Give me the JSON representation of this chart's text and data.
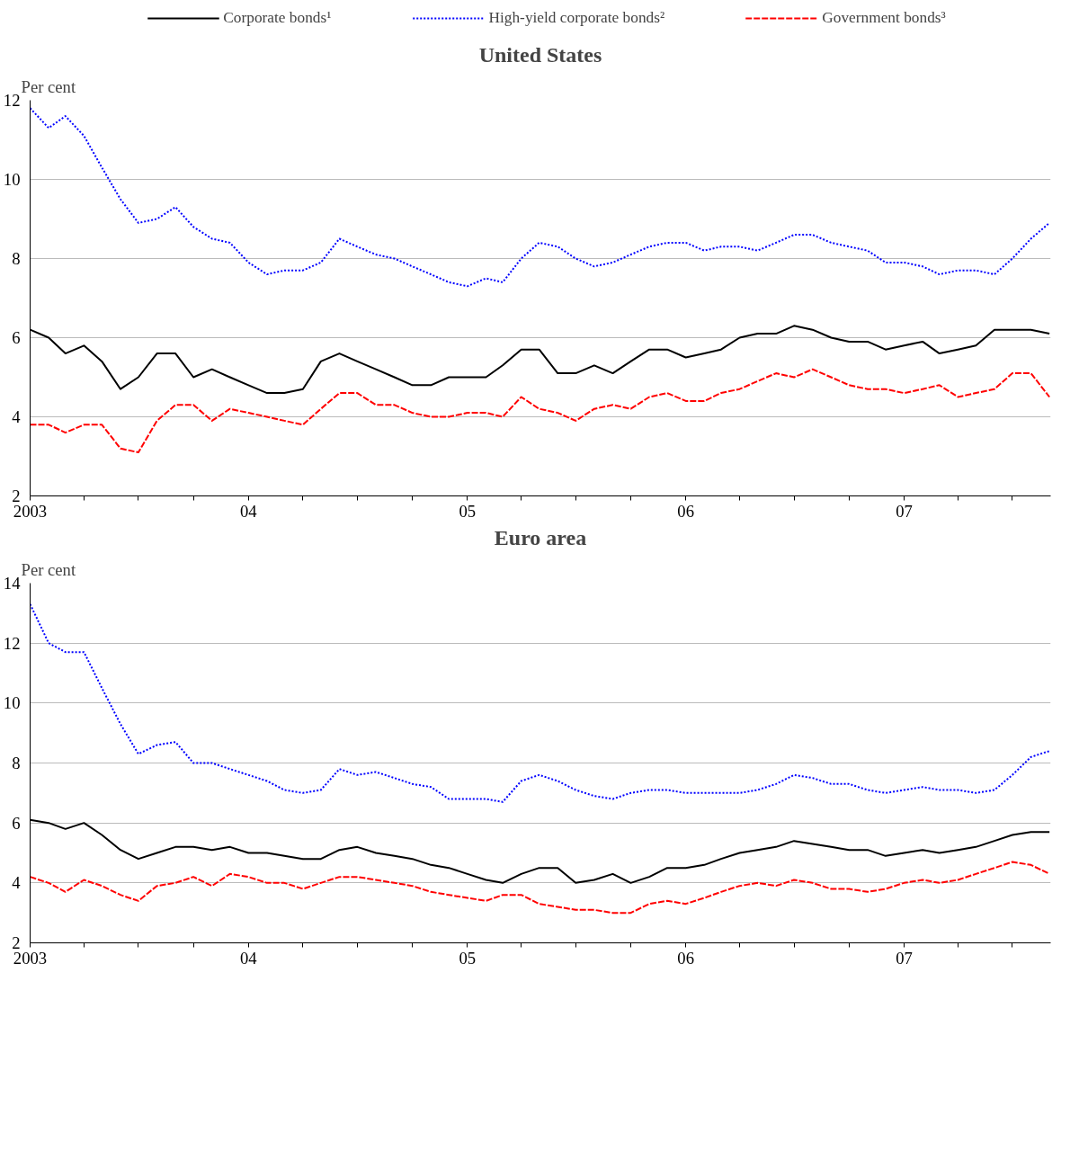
{
  "chart_data": [
    {
      "type": "line",
      "title": "United States",
      "ylabel": "Per cent",
      "legend": "top",
      "grid": "y",
      "x": [
        "2003-01",
        "2003-02",
        "2003-03",
        "2003-04",
        "2003-05",
        "2003-06",
        "2003-07",
        "2003-08",
        "2003-09",
        "2003-10",
        "2003-11",
        "2003-12",
        "2004-01",
        "2004-02",
        "2004-03",
        "2004-04",
        "2004-05",
        "2004-06",
        "2004-07",
        "2004-08",
        "2004-09",
        "2004-10",
        "2004-11",
        "2004-12",
        "2005-01",
        "2005-02",
        "2005-03",
        "2005-04",
        "2005-05",
        "2005-06",
        "2005-07",
        "2005-08",
        "2005-09",
        "2005-10",
        "2005-11",
        "2005-12",
        "2006-01",
        "2006-02",
        "2006-03",
        "2006-04",
        "2006-05",
        "2006-06",
        "2006-07",
        "2006-08",
        "2006-09",
        "2006-10",
        "2006-11",
        "2006-12",
        "2007-01",
        "2007-02",
        "2007-03",
        "2007-04",
        "2007-05",
        "2007-06",
        "2007-07",
        "2007-08",
        "2007-09"
      ],
      "xlim": [
        "2003-01-01",
        "2007-09-03"
      ],
      "xticks": [
        {
          "value": "2003-01",
          "label": "2003"
        },
        {
          "value": "2003-04",
          "label": null
        },
        {
          "value": "2003-07",
          "label": null
        },
        {
          "value": "2003-10",
          "label": null
        },
        {
          "value": "2004-01",
          "label": "04"
        },
        {
          "value": "2004-04",
          "label": null
        },
        {
          "value": "2004-07",
          "label": null
        },
        {
          "value": "2004-10",
          "label": null
        },
        {
          "value": "2005-01",
          "label": "05"
        },
        {
          "value": "2005-04",
          "label": null
        },
        {
          "value": "2005-07",
          "label": null
        },
        {
          "value": "2005-10",
          "label": null
        },
        {
          "value": "2006-01",
          "label": "06"
        },
        {
          "value": "2006-04",
          "label": null
        },
        {
          "value": "2006-07",
          "label": null
        },
        {
          "value": "2006-10",
          "label": null
        },
        {
          "value": "2007-01",
          "label": "07"
        },
        {
          "value": "2007-04",
          "label": null
        },
        {
          "value": "2007-07",
          "label": null
        }
      ],
      "ylim": [
        2,
        12
      ],
      "yticks": [
        2,
        4,
        6,
        8,
        10,
        12
      ],
      "series": [
        {
          "name": "Corporate bonds¹",
          "color": "#000000",
          "line_style": "solid",
          "values": [
            6.2,
            6.0,
            5.6,
            5.8,
            5.4,
            4.7,
            5.0,
            5.6,
            5.6,
            5.0,
            5.2,
            5.0,
            4.8,
            4.6,
            4.6,
            4.7,
            5.4,
            5.6,
            5.4,
            5.2,
            5.0,
            4.8,
            4.8,
            5.0,
            5.0,
            5.0,
            5.3,
            5.7,
            5.7,
            5.1,
            5.1,
            5.3,
            5.1,
            5.4,
            5.7,
            5.7,
            5.5,
            5.6,
            5.7,
            6.0,
            6.1,
            6.1,
            6.3,
            6.2,
            6.0,
            5.9,
            5.9,
            5.7,
            5.8,
            5.9,
            5.6,
            5.7,
            5.8,
            6.2,
            6.2,
            6.2,
            6.1
          ]
        },
        {
          "name": "High-yield corporate bonds²",
          "color": "#0000ff",
          "line_style": "dotted",
          "values": [
            11.8,
            11.3,
            11.6,
            11.1,
            10.3,
            9.5,
            8.9,
            9.0,
            9.3,
            8.8,
            8.5,
            8.4,
            7.9,
            7.6,
            7.7,
            7.7,
            7.9,
            8.5,
            8.3,
            8.1,
            8.0,
            7.8,
            7.6,
            7.4,
            7.3,
            7.5,
            7.4,
            8.0,
            8.4,
            8.3,
            8.0,
            7.8,
            7.9,
            8.1,
            8.3,
            8.4,
            8.4,
            8.2,
            8.3,
            8.3,
            8.2,
            8.4,
            8.6,
            8.6,
            8.4,
            8.3,
            8.2,
            7.9,
            7.9,
            7.8,
            7.6,
            7.7,
            7.7,
            7.6,
            8.0,
            8.5,
            8.9
          ]
        },
        {
          "name": "Government bonds³",
          "color": "#ff0000",
          "line_style": "dashed",
          "values": [
            3.8,
            3.8,
            3.6,
            3.8,
            3.8,
            3.2,
            3.1,
            3.9,
            4.3,
            4.3,
            3.9,
            4.2,
            4.1,
            4.0,
            3.9,
            3.8,
            4.2,
            4.6,
            4.6,
            4.3,
            4.3,
            4.1,
            4.0,
            4.0,
            4.1,
            4.1,
            4.0,
            4.5,
            4.2,
            4.1,
            3.9,
            4.2,
            4.3,
            4.2,
            4.5,
            4.6,
            4.4,
            4.4,
            4.6,
            4.7,
            4.9,
            5.1,
            5.0,
            5.2,
            5.0,
            4.8,
            4.7,
            4.7,
            4.6,
            4.7,
            4.8,
            4.5,
            4.6,
            4.7,
            5.1,
            5.1,
            4.5
          ]
        }
      ]
    },
    {
      "type": "line",
      "title": "Euro area",
      "ylabel": "Per cent",
      "grid": "y",
      "x": [
        "2003-01",
        "2003-02",
        "2003-03",
        "2003-04",
        "2003-05",
        "2003-06",
        "2003-07",
        "2003-08",
        "2003-09",
        "2003-10",
        "2003-11",
        "2003-12",
        "2004-01",
        "2004-02",
        "2004-03",
        "2004-04",
        "2004-05",
        "2004-06",
        "2004-07",
        "2004-08",
        "2004-09",
        "2004-10",
        "2004-11",
        "2004-12",
        "2005-01",
        "2005-02",
        "2005-03",
        "2005-04",
        "2005-05",
        "2005-06",
        "2005-07",
        "2005-08",
        "2005-09",
        "2005-10",
        "2005-11",
        "2005-12",
        "2006-01",
        "2006-02",
        "2006-03",
        "2006-04",
        "2006-05",
        "2006-06",
        "2006-07",
        "2006-08",
        "2006-09",
        "2006-10",
        "2006-11",
        "2006-12",
        "2007-01",
        "2007-02",
        "2007-03",
        "2007-04",
        "2007-05",
        "2007-06",
        "2007-07",
        "2007-08",
        "2007-09"
      ],
      "xlim": [
        "2003-01-01",
        "2007-09-03"
      ],
      "xticks": [
        {
          "value": "2003-01",
          "label": "2003"
        },
        {
          "value": "2003-04",
          "label": null
        },
        {
          "value": "2003-07",
          "label": null
        },
        {
          "value": "2003-10",
          "label": null
        },
        {
          "value": "2004-01",
          "label": "04"
        },
        {
          "value": "2004-04",
          "label": null
        },
        {
          "value": "2004-07",
          "label": null
        },
        {
          "value": "2004-10",
          "label": null
        },
        {
          "value": "2005-01",
          "label": "05"
        },
        {
          "value": "2005-04",
          "label": null
        },
        {
          "value": "2005-07",
          "label": null
        },
        {
          "value": "2005-10",
          "label": null
        },
        {
          "value": "2006-01",
          "label": "06"
        },
        {
          "value": "2006-04",
          "label": null
        },
        {
          "value": "2006-07",
          "label": null
        },
        {
          "value": "2006-10",
          "label": null
        },
        {
          "value": "2007-01",
          "label": "07"
        },
        {
          "value": "2007-04",
          "label": null
        },
        {
          "value": "2007-07",
          "label": null
        }
      ],
      "ylim": [
        2,
        14
      ],
      "yticks": [
        2,
        4,
        6,
        8,
        10,
        12,
        14
      ],
      "series": [
        {
          "color": "#000000",
          "line_style": "solid",
          "values": [
            6.1,
            6.0,
            5.8,
            6.0,
            5.6,
            5.1,
            4.8,
            5.0,
            5.2,
            5.2,
            5.1,
            5.2,
            5.0,
            5.0,
            4.9,
            4.8,
            4.8,
            5.1,
            5.2,
            5.0,
            4.9,
            4.8,
            4.6,
            4.5,
            4.3,
            4.1,
            4.0,
            4.3,
            4.5,
            4.5,
            4.0,
            4.1,
            4.3,
            4.0,
            4.2,
            4.5,
            4.5,
            4.6,
            4.8,
            5.0,
            5.1,
            5.2,
            5.4,
            5.3,
            5.2,
            5.1,
            5.1,
            4.9,
            5.0,
            5.1,
            5.0,
            5.1,
            5.2,
            5.4,
            5.6,
            5.7,
            5.7
          ]
        },
        {
          "color": "#0000ff",
          "line_style": "dotted",
          "values": [
            13.3,
            12.0,
            11.7,
            11.7,
            10.5,
            9.3,
            8.3,
            8.6,
            8.7,
            8.0,
            8.0,
            7.8,
            7.6,
            7.4,
            7.1,
            7.0,
            7.1,
            7.8,
            7.6,
            7.7,
            7.5,
            7.3,
            7.2,
            6.8,
            6.8,
            6.8,
            6.7,
            7.4,
            7.6,
            7.4,
            7.1,
            6.9,
            6.8,
            7.0,
            7.1,
            7.1,
            7.0,
            7.0,
            7.0,
            7.0,
            7.1,
            7.3,
            7.6,
            7.5,
            7.3,
            7.3,
            7.1,
            7.0,
            7.1,
            7.2,
            7.1,
            7.1,
            7.0,
            7.1,
            7.6,
            8.2,
            8.4
          ]
        },
        {
          "color": "#ff0000",
          "line_style": "dashed",
          "values": [
            4.2,
            4.0,
            3.7,
            4.1,
            3.9,
            3.6,
            3.4,
            3.9,
            4.0,
            4.2,
            3.9,
            4.3,
            4.2,
            4.0,
            4.0,
            3.8,
            4.0,
            4.2,
            4.2,
            4.1,
            4.0,
            3.9,
            3.7,
            3.6,
            3.5,
            3.4,
            3.6,
            3.6,
            3.3,
            3.2,
            3.1,
            3.1,
            3.0,
            3.0,
            3.3,
            3.4,
            3.3,
            3.5,
            3.7,
            3.9,
            4.0,
            3.9,
            4.1,
            4.0,
            3.8,
            3.8,
            3.7,
            3.8,
            4.0,
            4.1,
            4.0,
            4.1,
            4.3,
            4.5,
            4.7,
            4.6,
            4.3
          ]
        }
      ]
    }
  ]
}
